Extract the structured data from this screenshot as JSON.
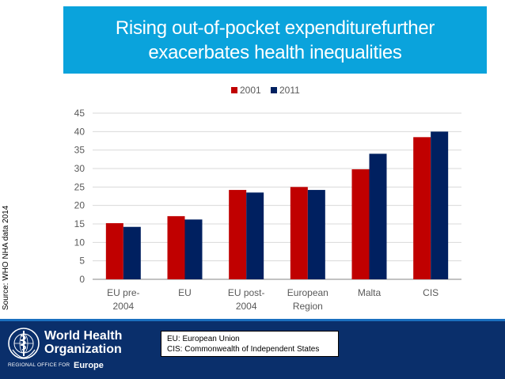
{
  "slide": {
    "title": "Rising out-of-pocket expenditurefurther\nexacerbates health inequalities",
    "source": "Source: WHO NHA data 2014"
  },
  "footer": {
    "org_name": "World Health\nOrganization",
    "region_label": "REGIONAL OFFICE FOR",
    "region_name": "Europe",
    "abbreviations": [
      "EU: European Union",
      "CIS: Commonwealth of Independent States"
    ]
  },
  "colors": {
    "title_bg": "#0aa3dc",
    "footer_bg": "#0a2f6b",
    "series_2001": "#c00000",
    "series_2011": "#002060"
  },
  "chart_data": {
    "type": "bar",
    "categories": [
      "EU pre-\n2004",
      "EU",
      "EU post-\n2004",
      "European\nRegion",
      "Malta",
      "CIS"
    ],
    "series": [
      {
        "name": "2001",
        "color": "#c00000",
        "values": [
          15.2,
          17.1,
          24.2,
          25.0,
          29.8,
          38.5
        ]
      },
      {
        "name": "2011",
        "color": "#002060",
        "values": [
          14.2,
          16.2,
          23.5,
          24.2,
          34.0,
          40.0
        ]
      }
    ],
    "ylim": [
      0,
      45
    ],
    "yticks": [
      0,
      5,
      10,
      15,
      20,
      25,
      30,
      35,
      40,
      45
    ],
    "grid": true,
    "legend": "top-center",
    "xlabel": "",
    "ylabel": ""
  }
}
